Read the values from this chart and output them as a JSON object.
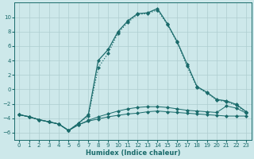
{
  "xlabel": "Humidex (Indice chaleur)",
  "bg_color": "#cde8ea",
  "grid_color": "#aecdd0",
  "line_color": "#1a6b6b",
  "xlim": [
    -0.5,
    23.5
  ],
  "ylim": [
    -7,
    12
  ],
  "yticks": [
    -6,
    -4,
    -2,
    0,
    2,
    4,
    6,
    8,
    10
  ],
  "xticks": [
    0,
    1,
    2,
    3,
    4,
    5,
    6,
    7,
    8,
    9,
    10,
    11,
    12,
    13,
    14,
    15,
    16,
    17,
    18,
    19,
    20,
    21,
    22,
    23
  ],
  "s1_x": [
    0,
    1,
    2,
    3,
    4,
    5,
    6,
    7,
    8,
    9,
    10,
    11,
    12,
    13,
    14,
    15,
    16,
    17,
    18,
    19,
    20,
    21,
    22,
    23
  ],
  "s1_y": [
    -3.5,
    -3.8,
    -4.2,
    -4.5,
    -4.8,
    -5.7,
    -4.9,
    -4.4,
    -4.1,
    -3.8,
    -3.6,
    -3.4,
    -3.3,
    -3.1,
    -3.0,
    -3.1,
    -3.2,
    -3.3,
    -3.4,
    -3.5,
    -3.6,
    -3.7,
    -3.7,
    -3.7
  ],
  "s2_x": [
    0,
    1,
    2,
    3,
    4,
    5,
    6,
    7,
    8,
    9,
    10,
    11,
    12,
    13,
    14,
    15,
    16,
    17,
    18,
    19,
    20,
    21,
    22,
    23
  ],
  "s2_y": [
    -3.5,
    -3.8,
    -4.2,
    -4.5,
    -4.8,
    -5.7,
    -4.9,
    -4.3,
    -3.8,
    -3.4,
    -3.0,
    -2.7,
    -2.5,
    -2.4,
    -2.4,
    -2.5,
    -2.7,
    -2.9,
    -3.0,
    -3.1,
    -3.2,
    -2.3,
    -2.6,
    -3.3
  ],
  "s3_x": [
    0,
    1,
    2,
    3,
    4,
    5,
    6,
    7,
    8,
    9,
    10,
    11,
    12,
    13,
    14,
    15,
    16,
    17,
    18,
    19,
    20,
    21,
    22,
    23
  ],
  "s3_y": [
    -3.5,
    -3.8,
    -4.2,
    -4.5,
    -4.8,
    -5.7,
    -4.7,
    -3.7,
    3.0,
    5.0,
    7.8,
    9.3,
    10.4,
    10.5,
    11.0,
    9.0,
    6.5,
    3.2,
    0.3,
    -0.5,
    -1.5,
    -1.7,
    -2.2,
    -3.2
  ],
  "s4_x": [
    0,
    1,
    2,
    3,
    4,
    5,
    6,
    7,
    8,
    9,
    10,
    11,
    12,
    13,
    14,
    15,
    16,
    17,
    18,
    19,
    20,
    21,
    22,
    23
  ],
  "s4_y": [
    -3.5,
    -3.8,
    -4.2,
    -4.5,
    -4.8,
    -5.7,
    -4.7,
    -3.5,
    4.0,
    5.5,
    8.0,
    9.5,
    10.5,
    10.6,
    11.2,
    9.1,
    6.6,
    3.5,
    0.4,
    -0.4,
    -1.4,
    -1.6,
    -2.1,
    -3.1
  ],
  "s3_dotted": true
}
